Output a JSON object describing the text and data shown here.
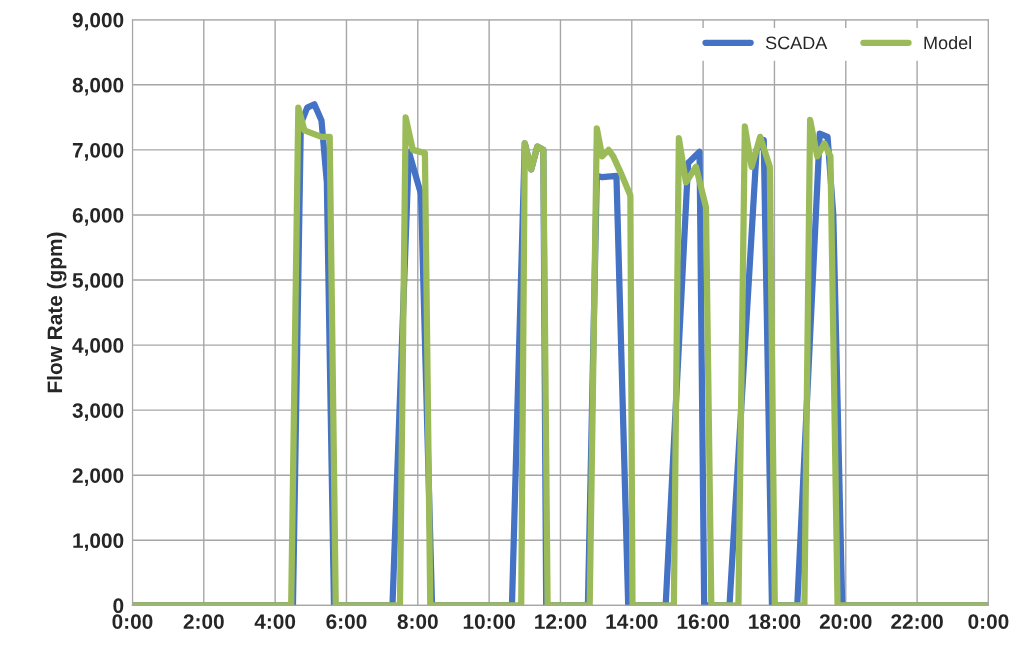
{
  "chart_data": {
    "type": "line",
    "ylabel": "Flow Rate (gpm)",
    "series": [
      {
        "name": "SCADA",
        "color": "#4472c4",
        "x": [
          0,
          4.5,
          4.72,
          4.9,
          5.1,
          5.3,
          5.45,
          5.65,
          7.29,
          7.75,
          8.09,
          8.4,
          10.64,
          11.0,
          11.18,
          11.35,
          11.52,
          11.6,
          12.77,
          13.02,
          13.17,
          13.57,
          13.9,
          14.95,
          15.58,
          15.9,
          16.03,
          16.74,
          17.5,
          17.7,
          17.93,
          18.64,
          19.27,
          19.49,
          19.65,
          19.9,
          24
        ],
        "values": [
          0,
          0,
          7400,
          7650,
          7700,
          7450,
          6500,
          0,
          0,
          6970,
          6320,
          0,
          0,
          7100,
          6700,
          7050,
          7000,
          0,
          0,
          6600,
          6580,
          6600,
          0,
          0,
          6800,
          6970,
          0,
          0,
          7000,
          7150,
          0,
          0,
          7250,
          7200,
          6000,
          0,
          0
        ]
      },
      {
        "name": "Model",
        "color": "#9bbb59",
        "x": [
          0,
          4.45,
          4.65,
          4.82,
          5.3,
          5.53,
          5.7,
          7.5,
          7.66,
          7.86,
          8.2,
          8.35,
          10.9,
          11.0,
          11.18,
          11.35,
          11.52,
          11.64,
          12.82,
          13.02,
          13.17,
          13.35,
          13.48,
          13.73,
          13.96,
          14.02,
          15.18,
          15.32,
          15.52,
          15.8,
          16.08,
          16.23,
          16.99,
          17.17,
          17.36,
          17.6,
          17.87,
          18.01,
          18.84,
          19.0,
          19.2,
          19.4,
          19.57,
          19.77,
          24
        ],
        "values": [
          0,
          0,
          7650,
          7300,
          7200,
          7200,
          0,
          0,
          7500,
          7000,
          6950,
          0,
          0,
          7100,
          6700,
          7050,
          7000,
          0,
          0,
          7330,
          6900,
          7000,
          6900,
          6600,
          6300,
          0,
          0,
          7180,
          6500,
          6740,
          6120,
          0,
          0,
          7360,
          6740,
          7200,
          6740,
          0,
          0,
          7460,
          6900,
          7100,
          6900,
          0,
          0
        ]
      }
    ],
    "xlim": [
      0,
      24
    ],
    "xticks": [
      {
        "value": 0,
        "label": "0:00"
      },
      {
        "value": 2,
        "label": "2:00"
      },
      {
        "value": 4,
        "label": "4:00"
      },
      {
        "value": 6,
        "label": "6:00"
      },
      {
        "value": 8,
        "label": "8:00"
      },
      {
        "value": 10,
        "label": "10:00"
      },
      {
        "value": 12,
        "label": "12:00"
      },
      {
        "value": 14,
        "label": "14:00"
      },
      {
        "value": 16,
        "label": "16:00"
      },
      {
        "value": 18,
        "label": "18:00"
      },
      {
        "value": 20,
        "label": "20:00"
      },
      {
        "value": 22,
        "label": "22:00"
      },
      {
        "value": 24,
        "label": "0:00"
      }
    ],
    "ylim": [
      0,
      9000
    ],
    "yticks": [
      0,
      {
        "value": 1000,
        "label": "1,000"
      },
      {
        "value": 2000,
        "label": "2,000"
      },
      {
        "value": 3000,
        "label": "3,000"
      },
      {
        "value": 4000,
        "label": "4,000"
      },
      {
        "value": 5000,
        "label": "5,000"
      },
      {
        "value": 6000,
        "label": "6,000"
      },
      {
        "value": 7000,
        "label": "7,000"
      },
      {
        "value": 8000,
        "label": "8,000"
      },
      {
        "value": 9000,
        "label": "9,000"
      }
    ],
    "grid": true,
    "legend": "top right",
    "line_style": "solid",
    "marker": "none"
  }
}
